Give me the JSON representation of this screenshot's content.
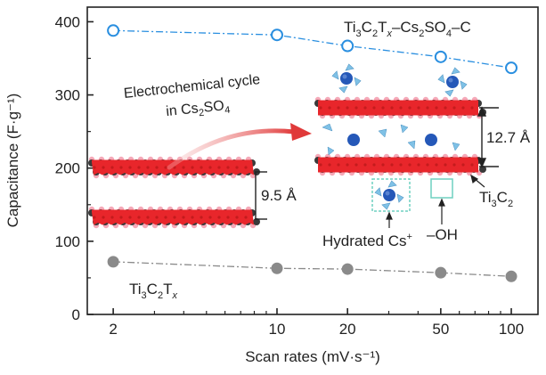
{
  "chart_data": {
    "type": "scatter",
    "xscale": "log",
    "xlabel": "Scan rates (mV·s⁻¹)",
    "ylabel": "Capacitance (F·g⁻¹)",
    "xlim": [
      1.55,
      130
    ],
    "ylim": [
      0,
      420
    ],
    "xticks": [
      2,
      10,
      20,
      50,
      100
    ],
    "xtick_labels": [
      "2",
      "10",
      "20",
      "50",
      "100"
    ],
    "yticks": [
      0,
      100,
      200,
      300,
      400
    ],
    "ytick_labels": [
      "0",
      "100",
      "200",
      "300",
      "400"
    ],
    "series": [
      {
        "name": "Ti3C2Tx–Cs2SO4–C",
        "marker": "open-circle",
        "color": "#2a8fe0",
        "x": [
          2,
          10,
          20,
          50,
          100
        ],
        "values": [
          388,
          382,
          367,
          352,
          337
        ]
      },
      {
        "name": "Ti3C2Tx",
        "marker": "filled-circle",
        "color": "#8a8a8a",
        "x": [
          2,
          10,
          20,
          50,
          100
        ],
        "values": [
          72,
          63,
          62,
          57,
          52
        ]
      }
    ]
  },
  "labels": {
    "top_series_main": "Ti",
    "top_series_sub1": "3",
    "top_series_mid": "C",
    "top_series_sub2": "2",
    "top_series_t": "T",
    "top_series_x": "x",
    "top_series_rest": "–Cs",
    "top_series_sub3": "2",
    "top_series_so": "SO",
    "top_series_sub4": "4",
    "top_series_end": "–C",
    "bottom_series_main": "Ti",
    "bottom_series_sub1": "3",
    "bottom_series_mid": "C",
    "bottom_series_sub2": "2",
    "bottom_series_t": "T",
    "bottom_series_x": "x"
  },
  "annotations": {
    "cycle_line1": "Electrochemical cycle",
    "cycle_line2_pre": "in Cs",
    "cycle_line2_sub1": "2",
    "cycle_line2_mid": "SO",
    "cycle_line2_sub2": "4",
    "spacing_small": "9.5 Å",
    "spacing_large": "12.7 Å",
    "hydrated_pre": "Hydrated Cs",
    "hydrated_sup": "+",
    "hydroxyl": "–OH",
    "ti3c2_pre": "Ti",
    "ti3c2_sub1": "3",
    "ti3c2_mid": "C",
    "ti3c2_sub2": "2"
  },
  "colors": {
    "axis": "#222222",
    "layer_red": "#e8262b",
    "atom_dark": "#3a3a3a",
    "atom_pink": "#f4a0b0",
    "cs_ion": "#2558b8",
    "water": "#7fc1e6",
    "arrow": "#e04040",
    "box": "#6fd0c0"
  }
}
